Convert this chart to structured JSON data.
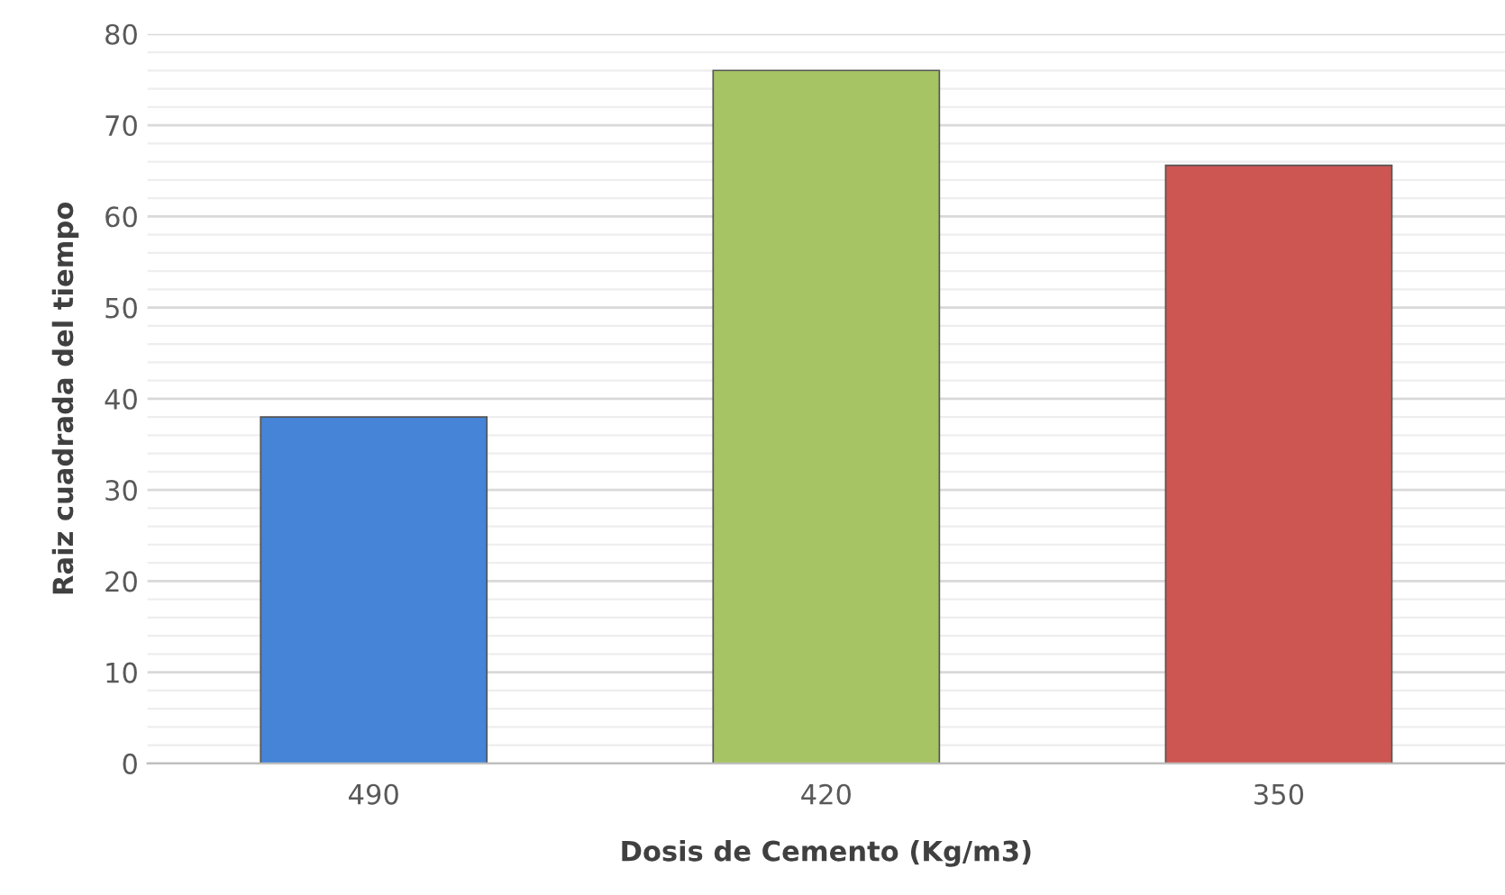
{
  "chart_data": {
    "type": "bar",
    "xlabel": "Dosis de Cemento (Kg/m3)",
    "ylabel": "Raiz cuadrada del tiempo",
    "categories": [
      "490",
      "420",
      "350"
    ],
    "values": [
      38,
      76,
      65.6
    ],
    "colors": [
      "#4584d6",
      "#a6c463",
      "#cd5652"
    ],
    "ylim": [
      0,
      80
    ],
    "yticks": [
      0,
      10,
      20,
      30,
      40,
      50,
      60,
      70,
      80
    ],
    "grid": "y"
  }
}
